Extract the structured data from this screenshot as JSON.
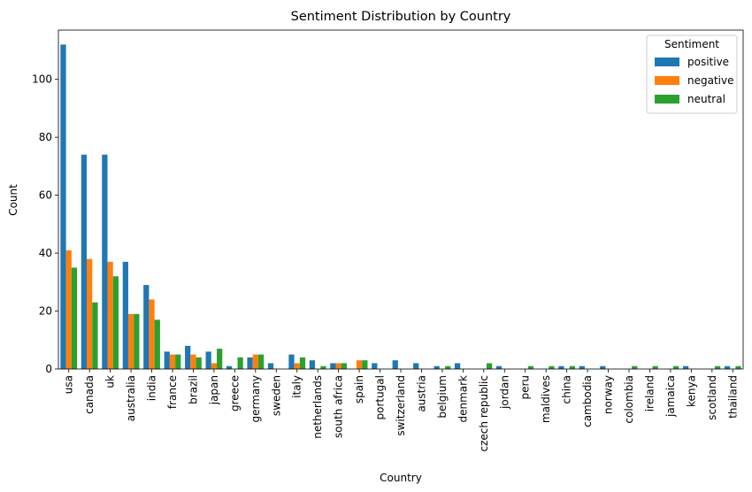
{
  "chart_data": {
    "type": "bar",
    "title": "Sentiment Distribution by Country",
    "xlabel": "Country",
    "ylabel": "Count",
    "ylim": [
      0,
      117
    ],
    "yticks": [
      0,
      20,
      40,
      60,
      80,
      100
    ],
    "grid": false,
    "legend": {
      "title": "Sentiment",
      "placement": "top-right"
    },
    "categories": [
      "usa",
      "canada",
      "uk",
      "australia",
      "india",
      "france",
      "brazil",
      "japan",
      "greece",
      "germany",
      "sweden",
      "italy",
      "netherlands",
      "south africa",
      "spain",
      "portugal",
      "switzerland",
      "austria",
      "belgium",
      "denmark",
      "czech republic",
      "jordan",
      "peru",
      "maldives",
      "china",
      "cambodia",
      "norway",
      "colombia",
      "ireland",
      "jamaica",
      "kenya",
      "scotland",
      "thailand"
    ],
    "series": [
      {
        "name": "positive",
        "color": "#1f77b4",
        "values": [
          112,
          74,
          74,
          37,
          29,
          6,
          8,
          6,
          1,
          4,
          2,
          5,
          3,
          2,
          0,
          2,
          3,
          2,
          1,
          2,
          0,
          1,
          0,
          0,
          1,
          1,
          1,
          0,
          0,
          0,
          1,
          0,
          1
        ]
      },
      {
        "name": "negative",
        "color": "#ff7f0e",
        "values": [
          41,
          38,
          37,
          19,
          24,
          5,
          5,
          2,
          0,
          5,
          0,
          2,
          0,
          2,
          3,
          0,
          0,
          0,
          0,
          0,
          0,
          0,
          0,
          0,
          0,
          0,
          0,
          0,
          0,
          0,
          0,
          0,
          0
        ]
      },
      {
        "name": "neutral",
        "color": "#2ca02c",
        "values": [
          35,
          23,
          32,
          19,
          17,
          5,
          4,
          7,
          4,
          5,
          0,
          4,
          1,
          2,
          3,
          0,
          0,
          0,
          1,
          0,
          2,
          0,
          1,
          1,
          1,
          0,
          0,
          1,
          1,
          1,
          0,
          1,
          1
        ]
      }
    ]
  }
}
